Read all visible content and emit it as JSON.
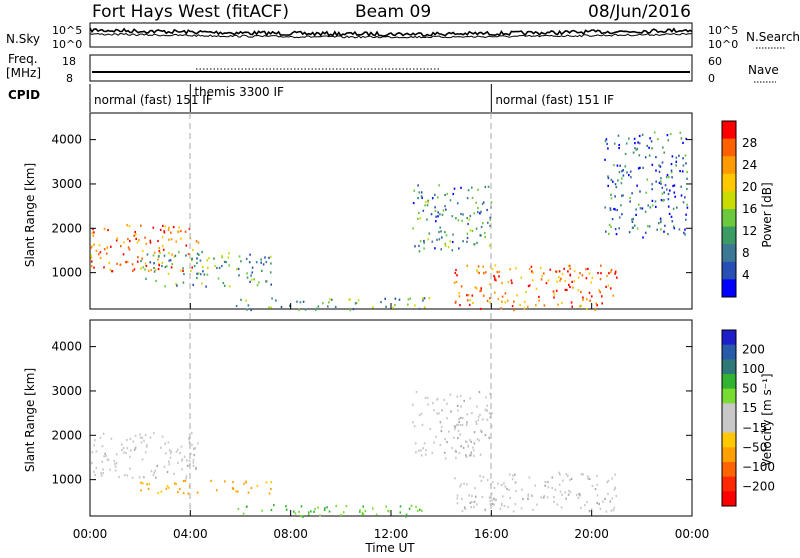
{
  "header": {
    "station": "Fort Hays West (fitACF)",
    "beam": "Beam 09",
    "date": "08/Jun/2016"
  },
  "noise_panel": {
    "left_label": "N.Sky",
    "right_label": "N.Search",
    "left_ticks": [
      "10^5",
      "10^0"
    ],
    "right_ticks": [
      "10^5",
      "10^0"
    ]
  },
  "freq_panel": {
    "left_label_1": "Freq.",
    "left_label_2": "[MHz]",
    "right_label": "Nave",
    "left_ticks": [
      "18",
      "8"
    ],
    "right_ticks": [
      "60",
      "0"
    ]
  },
  "cpid_panel": {
    "label": "CPID",
    "segments": [
      {
        "label": "normal (fast)  151  IF",
        "start": "00:00",
        "end": "04:00"
      },
      {
        "label": "themis 3300 IF",
        "start": "04:00",
        "end": "16:00"
      },
      {
        "label": "normal (fast)  151  IF",
        "start": "16:00",
        "end": "24:00"
      }
    ]
  },
  "power_panel": {
    "ylabel": "Slant Range [km]",
    "yticks": [
      "4000",
      "3000",
      "2000",
      "1000"
    ],
    "colorbar_label": "Power [dB]",
    "colorbar_ticks": [
      "28",
      "24",
      "20",
      "16",
      "12",
      "8",
      "4"
    ],
    "colors": [
      "#ff0000",
      "#ff6000",
      "#ff9a00",
      "#ffc800",
      "#c8dc00",
      "#6cc83c",
      "#3c9a64",
      "#3c7896",
      "#2850b4",
      "#0000ff"
    ]
  },
  "velocity_panel": {
    "ylabel": "Slant Range [km]",
    "yticks": [
      "4000",
      "3000",
      "2000",
      "1000"
    ],
    "colorbar_label": "Velocity [m s⁻¹]",
    "colorbar_ticks": [
      "200",
      "100",
      "50",
      "15",
      "−15",
      "−50",
      "−100",
      "−200"
    ],
    "colors": [
      "#1e1ec8",
      "#285aaa",
      "#2e7878",
      "#32b432",
      "#78dc32",
      "#c8c8c8",
      "#c8c8c8",
      "#ffc800",
      "#ffa000",
      "#ff6400",
      "#ff2800",
      "#ff0000"
    ]
  },
  "xaxis": {
    "label": "Time UT",
    "ticks": [
      "00:00",
      "04:00",
      "08:00",
      "12:00",
      "16:00",
      "20:00",
      "00:00"
    ]
  },
  "chart_data": {
    "type": "heatmap",
    "title": "Fort Hays West (fitACF) Beam 09 08/Jun/2016",
    "xlabel": "Time UT",
    "ylabel": "Slant Range [km]",
    "xlim": [
      0,
      24
    ],
    "ylim": [
      180,
      4600
    ],
    "scatter_regions_power": [
      {
        "t0": 0.0,
        "t1": 4.3,
        "r0": 1050,
        "r1": 2100,
        "dB": 24
      },
      {
        "t0": 2.0,
        "t1": 7.3,
        "r0": 700,
        "r1": 1500,
        "dB": 10
      },
      {
        "t0": 5.8,
        "t1": 13.5,
        "r0": 180,
        "r1": 450,
        "dB": 10
      },
      {
        "t0": 14.5,
        "t1": 21.0,
        "r0": 180,
        "r1": 1200,
        "dB": 24
      },
      {
        "t0": 12.8,
        "t1": 16.0,
        "r0": 1500,
        "r1": 3000,
        "dB": 8
      },
      {
        "t0": 20.5,
        "t1": 23.8,
        "r0": 1800,
        "r1": 4200,
        "dB": 6
      }
    ],
    "scatter_regions_velocity": [
      {
        "t0": 0.0,
        "t1": 4.3,
        "r0": 1050,
        "r1": 2100,
        "v": 0
      },
      {
        "t0": 2.0,
        "t1": 7.3,
        "r0": 700,
        "r1": 1000,
        "v": -50
      },
      {
        "t0": 5.8,
        "t1": 13.5,
        "r0": 180,
        "r1": 450,
        "v": 30
      },
      {
        "t0": 14.5,
        "t1": 21.0,
        "r0": 300,
        "r1": 1200,
        "v": 0
      },
      {
        "t0": 12.8,
        "t1": 16.0,
        "r0": 1500,
        "r1": 3000,
        "v": 0
      }
    ]
  }
}
